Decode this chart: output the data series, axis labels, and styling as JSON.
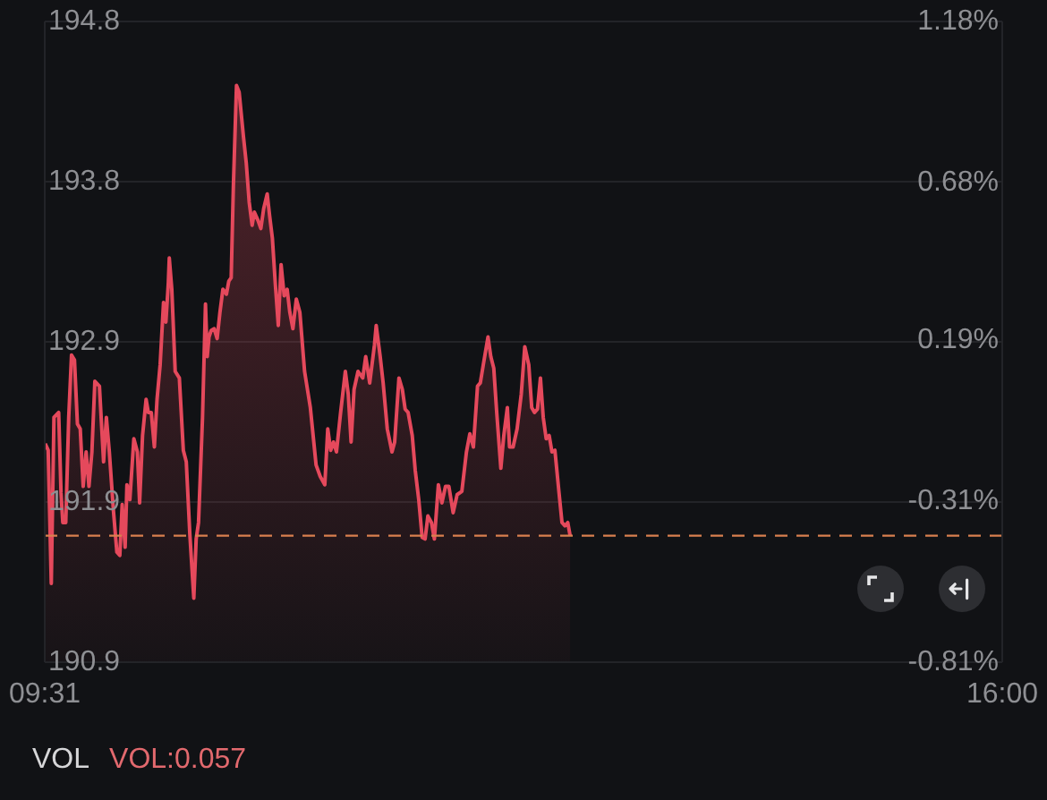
{
  "chart_data": {
    "type": "area",
    "x": [
      9.52,
      9.54,
      9.561,
      9.579,
      9.611,
      9.627,
      9.639,
      9.659,
      9.679,
      9.698,
      9.718,
      9.738,
      9.757,
      9.777,
      9.797,
      9.816,
      9.836,
      9.856,
      9.887,
      9.915,
      9.934,
      9.954,
      9.982,
      10.005,
      10.025,
      10.041,
      10.061,
      10.073,
      10.093,
      10.12,
      10.144,
      10.159,
      10.179,
      10.203,
      10.218,
      10.238,
      10.259,
      10.277,
      10.298,
      10.321,
      10.337,
      10.353,
      10.36,
      10.377,
      10.4,
      10.428,
      10.455,
      10.475,
      10.499,
      10.526,
      10.542,
      10.558,
      10.585,
      10.605,
      10.617,
      10.629,
      10.644,
      10.664,
      10.684,
      10.703,
      10.723,
      10.747,
      10.763,
      10.779,
      10.794,
      10.815,
      10.833,
      10.862,
      10.881,
      10.901,
      10.921,
      10.936,
      10.96,
      10.98,
      10.999,
      11.023,
      11.039,
      11.058,
      11.078,
      11.098,
      11.117,
      11.138,
      11.158,
      11.176,
      11.197,
      11.22,
      11.244,
      11.276,
      11.315,
      11.354,
      11.382,
      11.413,
      11.433,
      11.453,
      11.472,
      11.492,
      11.52,
      11.552,
      11.572,
      11.591,
      11.611,
      11.638,
      11.67,
      11.69,
      11.717,
      11.749,
      11.761,
      11.788,
      11.808,
      11.836,
      11.868,
      11.886,
      11.915,
      11.938,
      11.957,
      11.977,
      12.005,
      12.025,
      12.049,
      12.072,
      12.092,
      12.111,
      12.135,
      12.155,
      12.182,
      12.206,
      12.23,
      12.253,
      12.282,
      12.309,
      12.341,
      12.372,
      12.395,
      12.419,
      12.447,
      12.466,
      12.486,
      12.518,
      12.537,
      12.557,
      12.577,
      12.605,
      12.625,
      12.649,
      12.664,
      12.688,
      12.715,
      12.743,
      12.767,
      12.794,
      12.814,
      12.833,
      12.853,
      12.873,
      12.892,
      12.912,
      12.932,
      12.951,
      12.971,
      12.999,
      13.019,
      13.039,
      13.058,
      13.074
    ],
    "series": [
      {
        "color": "#e5495c",
        "values": [
          192.23,
          192.19,
          191.38,
          192.39,
          192.42,
          191.93,
          191.75,
          191.75,
          192.39,
          192.77,
          192.74,
          192.35,
          192.32,
          191.97,
          192.18,
          191.97,
          192.18,
          192.61,
          192.58,
          192.12,
          192.39,
          192.18,
          191.82,
          191.57,
          191.55,
          191.86,
          191.6,
          191.98,
          191.89,
          192.26,
          192.18,
          191.87,
          192.28,
          192.5,
          192.42,
          192.42,
          192.21,
          192.5,
          192.71,
          193.09,
          192.97,
          193.2,
          193.36,
          193.17,
          192.67,
          192.63,
          192.19,
          192.12,
          191.68,
          191.29,
          191.65,
          191.75,
          192.39,
          193.08,
          192.76,
          192.88,
          192.92,
          192.93,
          192.87,
          193.03,
          193.17,
          193.14,
          193.22,
          193.24,
          193.8,
          194.41,
          194.37,
          194.1,
          193.94,
          193.7,
          193.56,
          193.64,
          193.59,
          193.54,
          193.66,
          193.75,
          193.62,
          193.48,
          193.2,
          192.95,
          193.32,
          193.13,
          193.17,
          193.03,
          192.93,
          193.11,
          193.03,
          192.67,
          192.45,
          192.1,
          192.03,
          191.98,
          192.32,
          192.19,
          192.24,
          192.18,
          192.42,
          192.67,
          192.53,
          192.24,
          192.56,
          192.67,
          192.63,
          192.76,
          192.6,
          192.83,
          192.95,
          192.76,
          192.6,
          192.32,
          192.18,
          192.24,
          192.63,
          192.56,
          192.44,
          192.42,
          192.28,
          192.07,
          191.89,
          191.66,
          191.65,
          191.79,
          191.75,
          191.65,
          191.98,
          191.87,
          191.97,
          191.97,
          191.81,
          191.92,
          191.94,
          192.18,
          192.29,
          192.21,
          192.58,
          192.6,
          192.71,
          192.88,
          192.76,
          192.69,
          192.42,
          192.08,
          192.28,
          192.45,
          192.21,
          192.21,
          192.32,
          192.53,
          192.82,
          192.71,
          192.45,
          192.42,
          192.44,
          192.63,
          192.39,
          192.26,
          192.28,
          192.18,
          192.19,
          191.93,
          191.75,
          191.73,
          191.75,
          191.67
        ]
      }
    ],
    "xlim": [
      9.516667,
      16
    ],
    "xticks": [
      {
        "value": 9.516667,
        "label": "09:31"
      },
      {
        "value": 16,
        "label": "16:00"
      }
    ],
    "ylim": [
      190.9,
      194.8
    ],
    "yticks": [
      194.8,
      {
        "value": 193.825,
        "label": "193.8"
      },
      {
        "value": 192.85,
        "label": "192.9"
      },
      {
        "value": 191.875,
        "label": "191.9"
      },
      190.9
    ],
    "y2lim": [
      -0.81,
      1.18
    ],
    "y2ticks": [
      {
        "value": 1.18,
        "label": "1.18%"
      },
      {
        "value": 0.68,
        "label": "0.68%"
      },
      {
        "value": 0.19,
        "label": "0.19%"
      },
      {
        "value": -0.31,
        "label": "-0.31%"
      },
      {
        "value": -0.81,
        "label": "-0.81%"
      }
    ],
    "ref_lines": [
      {
        "axis": "y",
        "value": 191.67,
        "color": "#d9804f",
        "line_style": "dashed"
      }
    ],
    "grid": "y",
    "annotations": [
      "VOL",
      "VOL:0.057"
    ]
  }
}
